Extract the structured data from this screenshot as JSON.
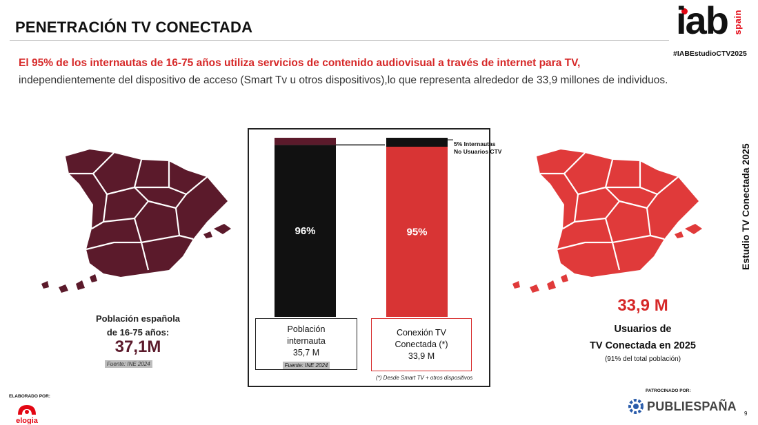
{
  "header": {
    "title": "PENETRACIÓN TV CONECTADA",
    "brand_name": "iab",
    "brand_suffix": "spain",
    "hashtag": "#IABEstudioCTV2025"
  },
  "intro": {
    "highlight": "El 95% de los internautas de 16-75 años utiliza servicios de contenido audiovisual a través de internet para TV,",
    "rest": "independientemente del dispositivo de acceso (Smart Tv u otros dispositivos),lo que representa alrededor de 33,9 millones de individuos."
  },
  "side_label": "Estudio TV Conectada 2025",
  "left_panel": {
    "label_line1": "Población española",
    "label_line2": "de 16-75 años:",
    "value": "37,1M",
    "source": "Fuente: INE 2024",
    "map_color": "#5b1a2b"
  },
  "right_panel": {
    "value": "33,9 M",
    "label_line1": "Usuarios de",
    "label_line2": "TV Conectada en 2025",
    "note": "(91% del total población)",
    "map_color": "#e03a3a"
  },
  "chart_data": {
    "type": "bar",
    "stacked": true,
    "categories": [
      "Población internauta",
      "Conexión TV Conectada (*)"
    ],
    "bars": [
      {
        "box_line1": "Población",
        "box_line2": "internauta",
        "box_value": "35,7 M",
        "box_source": "Fuente: INE 2024",
        "segments": [
          {
            "value": 96,
            "label": "96%",
            "color": "#111111"
          },
          {
            "value": 4,
            "label": "",
            "color": "#5b1a2b"
          }
        ]
      },
      {
        "box_line1": "Conexión TV",
        "box_line2": "Conectada (*)",
        "box_value": "33,9 M",
        "segments": [
          {
            "value": 95,
            "label": "95%",
            "color": "#d83434"
          },
          {
            "value": 5,
            "label": "",
            "color": "#111111"
          }
        ]
      }
    ],
    "annotation_line1": "5% Internautas",
    "annotation_line2": "No Usuarios CTV",
    "footnote": "(*) Desde Smart TV + otros dispositivos",
    "ylim": [
      0,
      100
    ]
  },
  "footer": {
    "made_by": "ELABORADO POR:",
    "made_by_brand": "elogia",
    "sponsor": "PATROCINADO POR:",
    "sponsor_brand": "PUBLIESPAÑA",
    "page_number": "9"
  }
}
